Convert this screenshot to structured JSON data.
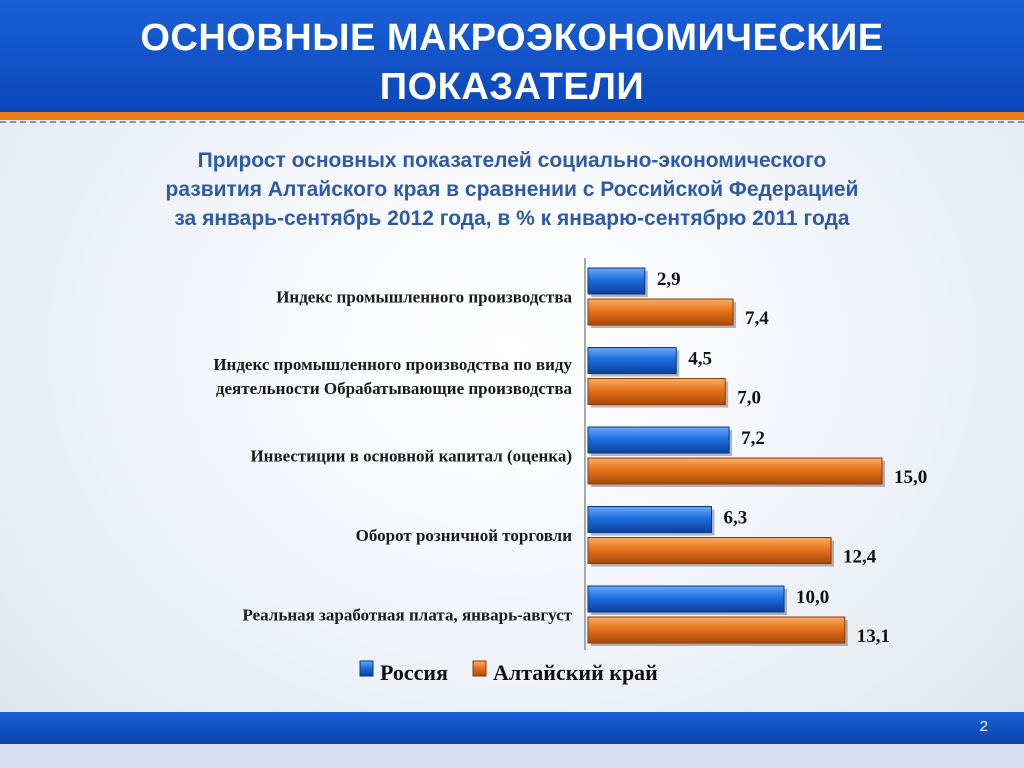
{
  "header": {
    "title_line1": "ОСНОВНЫЕ МАКРОЭКОНОМИЧЕСКИЕ",
    "title_line2": "ПОКАЗАТЕЛИ"
  },
  "subtitle": {
    "line1": "Прирост основных показателей социально-экономического",
    "line2": "развития Алтайского края в сравнении с Российской Федерацией",
    "line3": "за январь-сентябрь 2012 года, в % к январю-сентябрю 2011 года"
  },
  "footer": {
    "page_number": "2"
  },
  "colors": {
    "russia": "#1a6fe0",
    "altai": "#e8731c",
    "header": "#0b47b8",
    "subtitle": "#2f5ba6"
  },
  "chart_data": {
    "type": "bar",
    "orientation": "horizontal",
    "categories": [
      [
        "Индекс промышленного производства"
      ],
      [
        "Индекс промышленного производства по виду",
        "деятельности Обрабатывающие производства"
      ],
      [
        "Инвестиции в основной капитал (оценка)"
      ],
      [
        "Оборот розничной торговли"
      ],
      [
        "Реальная заработная плата, январь-август"
      ]
    ],
    "series": [
      {
        "name": "Россия",
        "values": [
          2.9,
          4.5,
          7.2,
          6.3,
          10.0
        ],
        "labels": [
          "2,9",
          "4,5",
          "7,2",
          "6,3",
          "10,0"
        ],
        "color": "#1a6fe0"
      },
      {
        "name": "Алтайский край",
        "values": [
          7.4,
          7.0,
          15.0,
          12.4,
          13.1
        ],
        "labels": [
          "7,4",
          "7,0",
          "15,0",
          "12,4",
          "13,1"
        ],
        "color": "#e8731c"
      }
    ],
    "xlim": [
      0,
      15
    ],
    "grid": false,
    "legend_position": "bottom"
  }
}
